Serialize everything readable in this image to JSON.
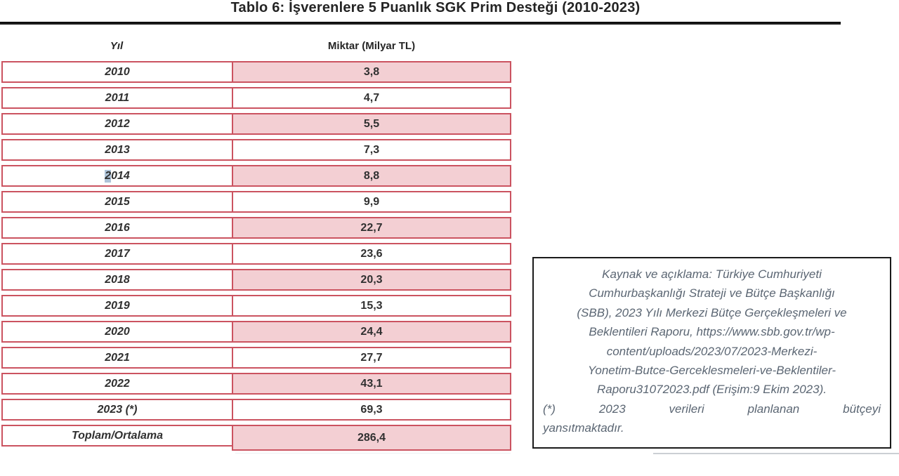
{
  "title": "Tablo 6: İşverenlere 5 Puanlık SGK Prim Desteği (2010-2023)",
  "colors": {
    "table_border_red": "#cb5360",
    "cell_fill_pink": "#f3cfd3",
    "note_text_gray": "#5b6673",
    "selection_highlight_blue": "#aec3d8"
  },
  "table": {
    "columns": [
      "Yıl",
      "Miktar (Milyar TL)"
    ],
    "rows": [
      {
        "year": "2010",
        "value": "3,8"
      },
      {
        "year": "2011",
        "value": "4,7"
      },
      {
        "year": "2012",
        "value": "5,5"
      },
      {
        "year": "2013",
        "value": "7,3"
      },
      {
        "year": "2014",
        "year_hl": "2",
        "year_tail": "014",
        "value": "8,8"
      },
      {
        "year": "2015",
        "value": "9,9"
      },
      {
        "year": "2016",
        "value": "22,7"
      },
      {
        "year": "2017",
        "value": "23,6"
      },
      {
        "year": "2018",
        "value": "20,3"
      },
      {
        "year": "2019",
        "value": "15,3"
      },
      {
        "year": "2020",
        "value": "24,4"
      },
      {
        "year": "2021",
        "value": "27,7"
      },
      {
        "year": "2022",
        "value": "43,1"
      },
      {
        "year": "2023 (*)",
        "value": "69,3"
      },
      {
        "year": "Toplam/Ortalama",
        "value": "286,4"
      }
    ]
  },
  "note": {
    "lines": [
      "Kaynak ve açıklama: Türkiye Cumhuriyeti",
      "Cumhurbaşkanlığı Strateji ve Bütçe Başkanlığı",
      "(SBB), 2023 Yılı Merkezi Bütçe Gerçekleşmeleri ve",
      "Beklentileri Raporu, https://www.sbb.gov.tr/wp-",
      "content/uploads/2023/07/2023-Merkezi-",
      "Yonetim-Butce-Gerceklesmeleri-ve-Beklentiler-",
      "Raporu31072023.pdf (Erişim:9 Ekim 2023).",
      "(*) 2023 verileri planlanan bütçeyi",
      "yansıtmaktadır."
    ]
  }
}
